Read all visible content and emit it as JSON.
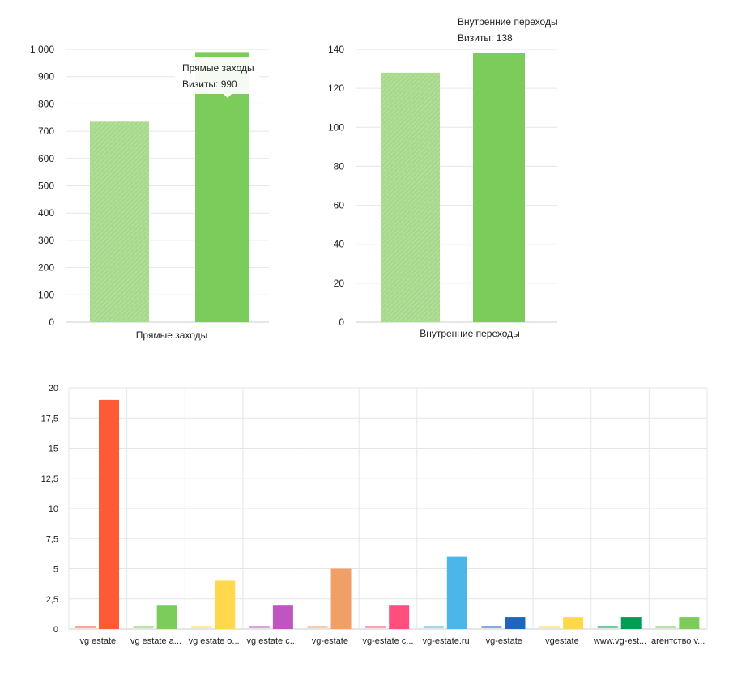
{
  "chart_data": [
    {
      "type": "bar",
      "categories": [
        "Прямые заходы"
      ],
      "series": [
        {
          "values": [
            735
          ]
        },
        {
          "name": "Прямые заходы",
          "values": [
            990
          ]
        }
      ],
      "yticks": [
        "0",
        "100",
        "200",
        "300",
        "400",
        "500",
        "600",
        "700",
        "800",
        "900",
        "1 000"
      ],
      "ylim": [
        0,
        1000
      ],
      "tooltip": {
        "title": "Прямые заходы",
        "text": "Визиты: 990"
      },
      "colors": {
        "prev": "#a6d98c",
        "curr": "#7ccc5c",
        "grid": "#e6e6e6"
      }
    },
    {
      "type": "bar",
      "categories": [
        "Внутренние переходы"
      ],
      "series": [
        {
          "values": [
            128
          ]
        },
        {
          "name": "Внутренние переходы",
          "values": [
            138
          ]
        }
      ],
      "yticks": [
        "0",
        "20",
        "40",
        "60",
        "80",
        "100",
        "120",
        "140"
      ],
      "ylim": [
        0,
        140
      ],
      "tooltip": {
        "title": "Внутренние переходы",
        "text": "Визиты: 138"
      },
      "colors": {
        "prev": "#a6d98c",
        "curr": "#7ccc5c",
        "grid": "#e6e6e6"
      }
    },
    {
      "type": "bar",
      "categories": [
        "vg estate",
        "vg estate a...",
        "vg estate o...",
        "vg estate c...",
        "vg-estate",
        "vg-estate c...",
        "vg-estate.ru",
        "vg-estate",
        "vgestate",
        "www.vg-est...",
        "агентство v..."
      ],
      "series": [
        {
          "values": [
            0.2,
            0.2,
            0.2,
            0.2,
            0.2,
            0.2,
            0.2,
            0.2,
            0.2,
            0.2,
            0.2
          ]
        },
        {
          "values": [
            19,
            2,
            4,
            2,
            5,
            2,
            6,
            1,
            1,
            1,
            1
          ]
        }
      ],
      "colors": [
        "#ff5a36",
        "#7ccc5c",
        "#ffd84d",
        "#bf55c0",
        "#f0a066",
        "#ff4f7e",
        "#4db6e8",
        "#2164bf",
        "#ffd84d",
        "#009e55",
        "#7ccc5c"
      ],
      "yticks": [
        "0",
        "2,5",
        "5",
        "7,5",
        "10",
        "12,5",
        "15",
        "17,5",
        "20"
      ],
      "ylim": [
        0,
        20
      ],
      "grid_color": "#e6e6e6"
    }
  ]
}
